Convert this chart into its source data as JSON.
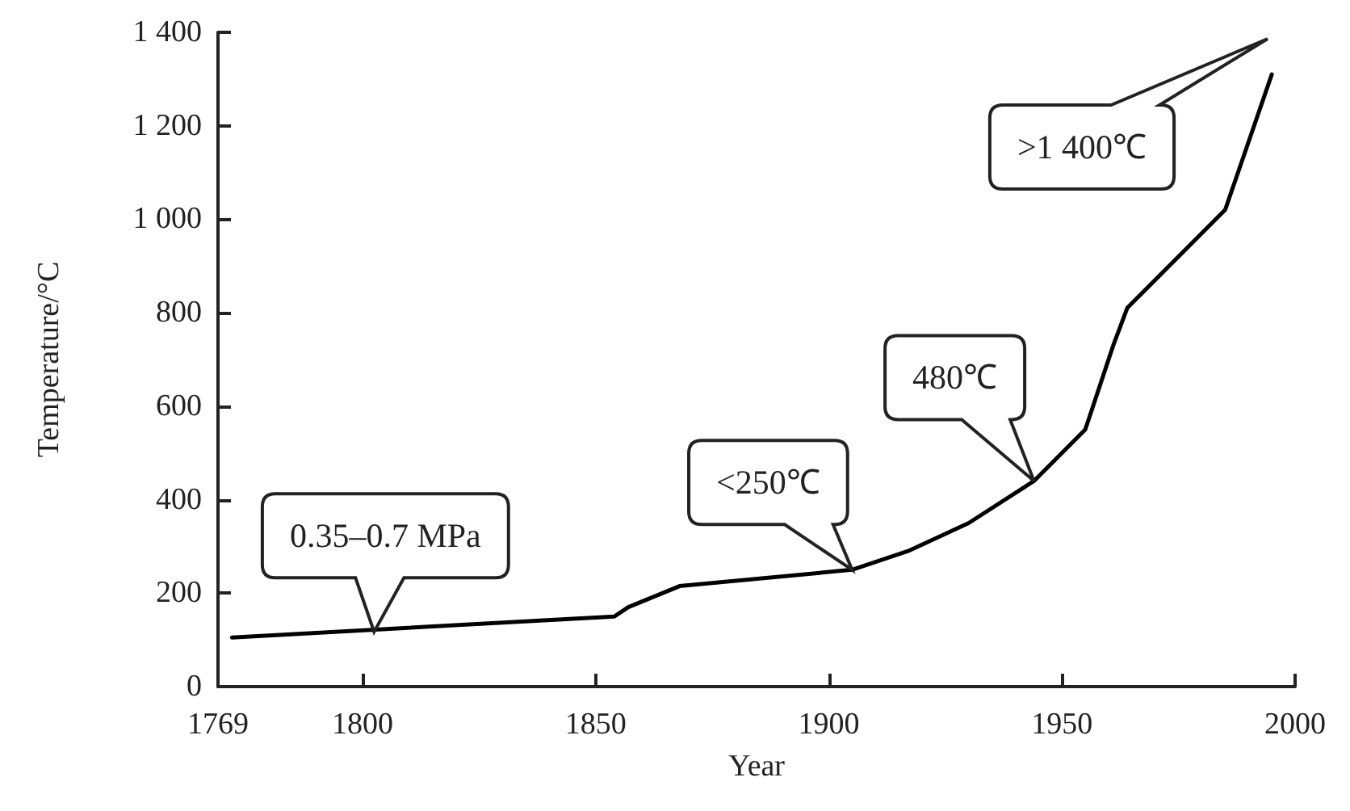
{
  "chart_data": {
    "type": "line",
    "xlabel": "Year",
    "ylabel": "Temperature/°C",
    "x": [
      1772,
      1854,
      1857,
      1868,
      1905,
      1917,
      1930,
      1944,
      1955,
      1961,
      1964,
      1985,
      1995
    ],
    "series": [
      {
        "color": "#000000",
        "values": [
          105,
          150,
          170,
          215,
          250,
          290,
          350,
          440,
          550,
          730,
          810,
          1020,
          1310
        ]
      }
    ],
    "xlim": [
      1769,
      2000
    ],
    "xticks": [
      1769,
      1800,
      1850,
      1900,
      1950,
      2000
    ],
    "ylim": [
      0,
      1400
    ],
    "yticks": [
      0,
      200,
      400,
      600,
      800,
      {
        "value": 1000,
        "label": "1 000"
      },
      {
        "value": 1200,
        "label": "1 200"
      },
      {
        "value": 1400,
        "label": "1 400"
      }
    ],
    "grid": false,
    "marker": "none",
    "line_style": "solid",
    "annotations": [
      {
        "text": "0.35–0.7 MPa",
        "x": 1772,
        "y": 105
      },
      {
        "text": "<250℃",
        "x": 1905,
        "y": 250
      },
      {
        "text": "480℃",
        "x": 1944,
        "y": 440
      },
      ">1 400℃"
    ]
  }
}
